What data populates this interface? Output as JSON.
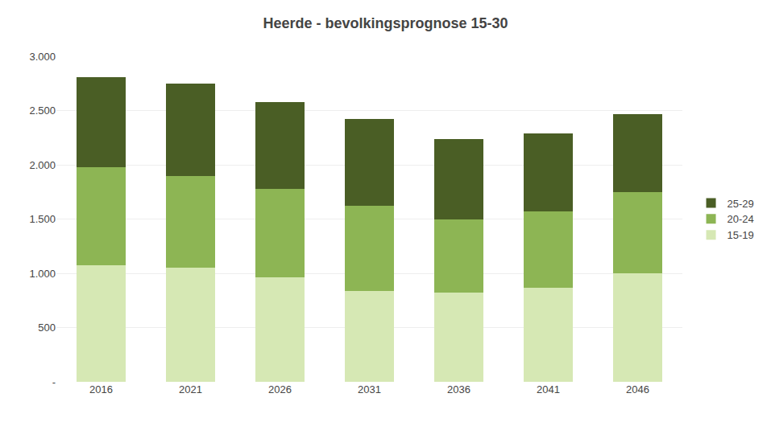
{
  "chart_data": {
    "type": "bar",
    "stacked": true,
    "title": "Heerde - bevolkingsprognose 15-30",
    "categories": [
      "2016",
      "2021",
      "2026",
      "2031",
      "2036",
      "2041",
      "2046"
    ],
    "series": [
      {
        "name": "15-19",
        "color": "#d6e8b4",
        "values": [
          1075,
          1050,
          960,
          840,
          820,
          870,
          1000
        ]
      },
      {
        "name": "20-24",
        "color": "#8db554",
        "values": [
          900,
          850,
          820,
          780,
          680,
          700,
          750
        ]
      },
      {
        "name": "25-29",
        "color": "#4a5e25",
        "values": [
          835,
          850,
          800,
          800,
          740,
          720,
          720
        ]
      }
    ],
    "ylim": [
      0,
      3000
    ],
    "yticks": [
      {
        "value": 0,
        "label": "-"
      },
      500,
      {
        "value": 1000,
        "label": "1.000"
      },
      {
        "value": 1500,
        "label": "1.500"
      },
      {
        "value": 2000,
        "label": "2.000"
      },
      {
        "value": 2500,
        "label": "2.500"
      },
      {
        "value": 3000,
        "label": "3.000"
      }
    ],
    "grid": true,
    "legend": "right"
  }
}
